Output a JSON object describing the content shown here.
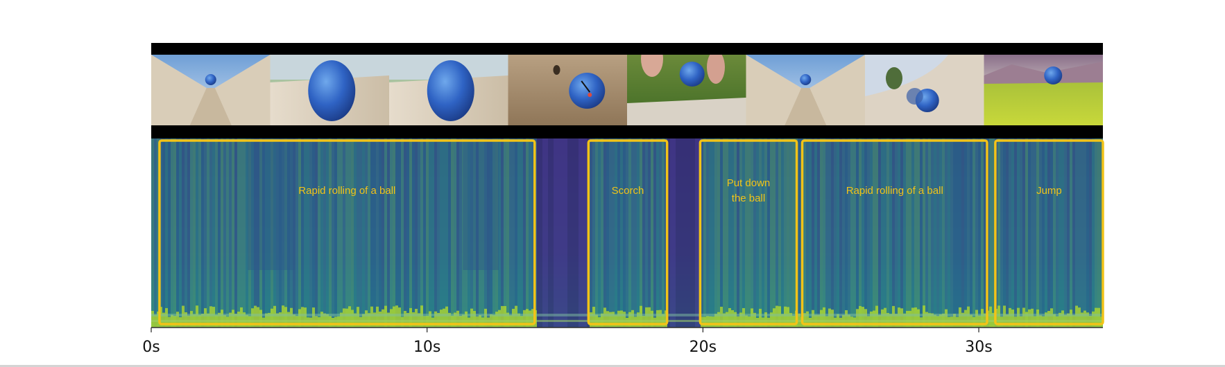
{
  "timeline": {
    "duration_s": 34.5,
    "ticks": [
      {
        "t": 0,
        "label": "0s"
      },
      {
        "t": 10,
        "label": "10s"
      },
      {
        "t": 20,
        "label": "20s"
      },
      {
        "t": 30,
        "label": "30s"
      }
    ]
  },
  "frames": [
    {
      "scene": "ball-in-halfpipe"
    },
    {
      "scene": "ball-closeup-track"
    },
    {
      "scene": "ball-closeup-track"
    },
    {
      "scene": "ball-on-sand"
    },
    {
      "scene": "hand-placing-ball-on-grass"
    },
    {
      "scene": "ball-in-halfpipe"
    },
    {
      "scene": "ball-on-curved-ramp"
    },
    {
      "scene": "ball-over-grass-field"
    }
  ],
  "segments": [
    {
      "start": 0.3,
      "end": 13.9,
      "label_lines": [
        "Rapid rolling of a ball"
      ]
    },
    {
      "start": 15.85,
      "end": 18.7,
      "label_lines": [
        "Scorch"
      ]
    },
    {
      "start": 19.9,
      "end": 23.4,
      "label_lines": [
        "Put down",
        "the ball"
      ]
    },
    {
      "start": 23.6,
      "end": 30.3,
      "label_lines": [
        "Rapid rolling of a ball"
      ]
    },
    {
      "start": 30.6,
      "end": 34.5,
      "label_lines": [
        "Jump"
      ]
    }
  ],
  "colors": {
    "segment_outline": "#f2c318",
    "label_text": "#f2c318",
    "spectrogram_low": "#3b2a78",
    "spectrogram_mid": "#23898c",
    "spectrogram_high": "#b7dd29"
  }
}
